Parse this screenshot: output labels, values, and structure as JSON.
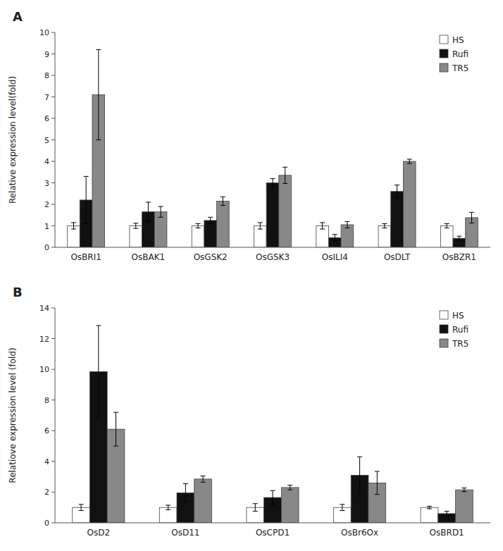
{
  "chart_data": [
    {
      "type": "bar",
      "title": "A",
      "ylabel": "Relative expression level(fold)",
      "categories": [
        "OsBRI1",
        "OsBAK1",
        "OsGSK2",
        "OsGSK3",
        "OsILI4",
        "OsDLT",
        "OsBZR1"
      ],
      "series": [
        {
          "name": "HS",
          "color": "#ffffff",
          "values": [
            1.0,
            1.0,
            1.0,
            1.0,
            1.0,
            1.0,
            1.0
          ],
          "errors": [
            0.15,
            0.12,
            0.1,
            0.15,
            0.15,
            0.1,
            0.1
          ]
        },
        {
          "name": "Rufi",
          "color": "#111111",
          "values": [
            2.2,
            1.65,
            1.25,
            3.0,
            0.45,
            2.6,
            0.42
          ],
          "errors": [
            1.1,
            0.45,
            0.15,
            0.2,
            0.15,
            0.3,
            0.1
          ]
        },
        {
          "name": "TR5",
          "color": "#888888",
          "values": [
            7.1,
            1.65,
            2.15,
            3.35,
            1.05,
            4.0,
            1.38
          ],
          "errors": [
            2.1,
            0.25,
            0.2,
            0.38,
            0.15,
            0.1,
            0.25
          ]
        }
      ],
      "ylim": [
        0,
        10
      ],
      "yticks": [
        0,
        1,
        2,
        3,
        4,
        5,
        6,
        7,
        8,
        9,
        10
      ],
      "grid": false,
      "legend": "upper right"
    },
    {
      "type": "bar",
      "title": "B",
      "ylabel": "Relatiove expression level (fold)",
      "categories": [
        "OsD2",
        "OsD11",
        "OsCPD1",
        "OsBr6Ox",
        "OsBRD1"
      ],
      "series": [
        {
          "name": "HS",
          "color": "#ffffff",
          "values": [
            1.0,
            1.0,
            1.0,
            1.0,
            1.0
          ],
          "errors": [
            0.2,
            0.15,
            0.25,
            0.2,
            0.08
          ]
        },
        {
          "name": "Rufi",
          "color": "#111111",
          "values": [
            9.85,
            1.95,
            1.65,
            3.1,
            0.6
          ],
          "errors": [
            3.0,
            0.6,
            0.45,
            1.2,
            0.15
          ]
        },
        {
          "name": "TR5",
          "color": "#888888",
          "values": [
            6.1,
            2.85,
            2.3,
            2.6,
            2.15
          ],
          "errors": [
            1.1,
            0.2,
            0.15,
            0.75,
            0.12
          ]
        }
      ],
      "ylim": [
        0,
        14
      ],
      "yticks": [
        0,
        2,
        4,
        6,
        8,
        10,
        12,
        14
      ],
      "grid": false,
      "legend": "upper right"
    }
  ]
}
